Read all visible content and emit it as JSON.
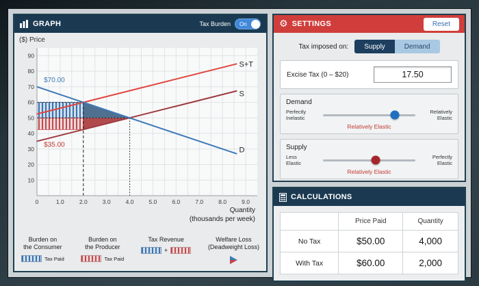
{
  "graph": {
    "title": "GRAPH",
    "tax_burden_label": "Tax Burden",
    "toggle_state": "On",
    "ylabel": "($) Price",
    "xlabel_line1": "Quantity",
    "xlabel_line2": "(thousands per week)",
    "legend": {
      "consumer_line1": "Burden on",
      "consumer_line2": "the Consumer",
      "consumer_swatch_label": "Tax Paid",
      "producer_line1": "Burden on",
      "producer_line2": "the Producer",
      "producer_swatch_label": "Tax Paid",
      "revenue_line1": "Tax Revenue",
      "revenue_plus": "+",
      "welfare_line1": "Welfare Loss",
      "welfare_line2": "(Deadweight Loss)"
    }
  },
  "chart_data": {
    "type": "line",
    "title": "",
    "ylabel": "($) Price",
    "xlabel": "Quantity (thousands per week)",
    "xlim": [
      0,
      9.5
    ],
    "ylim": [
      0,
      95
    ],
    "grid": true,
    "x_ticks": [
      0,
      1,
      2,
      3,
      4,
      5,
      6,
      7,
      8,
      9
    ],
    "x_tick_labels": [
      "0",
      "1.0",
      "2.0",
      "3.0",
      "4.0",
      "5.0",
      "6.0",
      "7.0",
      "8.0",
      "9.0"
    ],
    "y_ticks": [
      10,
      20,
      30,
      40,
      50,
      60,
      70,
      80,
      90
    ],
    "series": [
      {
        "name": "S+T",
        "color": "#e0453e",
        "points": [
          [
            0,
            52.5
          ],
          [
            8.6,
            84.7
          ]
        ],
        "label_pos": [
          8.72,
          83
        ]
      },
      {
        "name": "S",
        "color": "#9e3a3e",
        "points": [
          [
            0,
            35.0
          ],
          [
            8.6,
            67.3
          ]
        ],
        "label_pos": [
          8.72,
          64
        ]
      },
      {
        "name": "D",
        "color": "#3d79b8",
        "points": [
          [
            0,
            70.0
          ],
          [
            8.6,
            27.0
          ]
        ],
        "label_pos": [
          8.72,
          28
        ]
      }
    ],
    "regions": [
      {
        "name": "consumer-burden",
        "kind": "rect",
        "x": [
          0,
          2
        ],
        "y": [
          50,
          60
        ],
        "fill": "blue-hatch",
        "stroke": "#3a72ad"
      },
      {
        "name": "producer-burden",
        "kind": "rect",
        "x": [
          0,
          2
        ],
        "y": [
          42.5,
          50
        ],
        "fill": "red-hatch",
        "stroke": "#c04a4e"
      },
      {
        "name": "deadweight-loss-top",
        "kind": "polygon",
        "points": [
          [
            2,
            60
          ],
          [
            2,
            50
          ],
          [
            4,
            50
          ]
        ],
        "fill": "#50708f"
      },
      {
        "name": "deadweight-loss-bottom",
        "kind": "polygon",
        "points": [
          [
            2,
            50
          ],
          [
            2,
            42.5
          ],
          [
            4,
            50
          ]
        ],
        "fill": "#b04a4c"
      }
    ],
    "guides": [
      {
        "kind": "h",
        "y": 60,
        "x": [
          0,
          2
        ],
        "dash": "2,2.5"
      },
      {
        "kind": "h",
        "y": 50,
        "x": [
          0,
          4
        ],
        "dash": "2,2.5"
      },
      {
        "kind": "v",
        "x": 2,
        "y": [
          0,
          60
        ],
        "dash": "4,3"
      },
      {
        "kind": "v",
        "x": 4,
        "y": [
          0,
          50
        ],
        "dash": "1.5,2.5"
      }
    ],
    "annotations": [
      {
        "text": "$70.00",
        "x": 0.3,
        "y": 73,
        "color": "#3d79b8"
      },
      {
        "text": "$35.00",
        "x": 0.3,
        "y": 31.5,
        "color": "#c0392b"
      }
    ],
    "key_values": {
      "tax": 17.5,
      "no_tax_price": 50.0,
      "no_tax_quantity_thousands": 4,
      "with_tax_price_paid": 60.0,
      "with_tax_price_received": 42.5,
      "with_tax_quantity_thousands": 2
    }
  },
  "settings": {
    "title": "SETTINGS",
    "reset_label": "Reset",
    "tax_imposed_label": "Tax imposed on:",
    "supply_button": "Supply",
    "demand_button": "Demand",
    "excise_label": "Excise Tax (0 – $20)",
    "excise_value": "17.50",
    "demand": {
      "title": "Demand",
      "left_line1": "Perfectly",
      "left_line2": "Inelastic",
      "right_line1": "Relatively",
      "right_line2": "Elastic",
      "current": "Relatively Elastic",
      "dot_color": "#1f6fc0",
      "position_pct": 78
    },
    "supply": {
      "title": "Supply",
      "left_line1": "Less",
      "left_line2": "Elastic",
      "right_line1": "Perfectly",
      "right_line2": "Elastic",
      "current": "Relatively Elastic",
      "dot_color": "#a8242d",
      "position_pct": 57
    }
  },
  "calculations": {
    "title": "CALCULATIONS",
    "col_price": "Price Paid",
    "col_quantity": "Quantity",
    "rows": [
      {
        "label": "No Tax",
        "price": "$50.00",
        "quantity": "4,000"
      },
      {
        "label": "With Tax",
        "price": "$60.00",
        "quantity": "2,000"
      }
    ]
  },
  "colors": {
    "header_navy": "#1b3a52",
    "header_red": "#d03e3b",
    "supply_line": "#9e3a3e",
    "supply_plus_tax_line": "#e0453e",
    "demand_line": "#3d79b8",
    "toggle_blue": "#4189d8"
  }
}
